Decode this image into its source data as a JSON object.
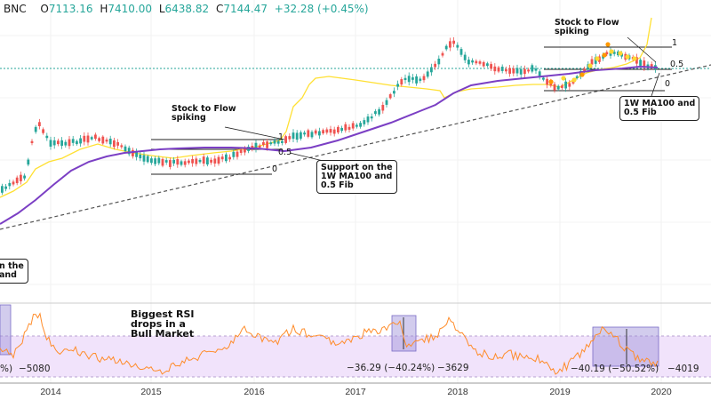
{
  "header": {
    "symbol": "BNC",
    "open_label": "O",
    "open": "7113.16",
    "high_label": "H",
    "high": "7410.00",
    "low_label": "L",
    "low": "6438.82",
    "close_label": "C",
    "close": "7144.47",
    "change": "+32.28 (+0.45%)"
  },
  "annotations": {
    "stf_2016": "Stock to Flow\nspiking",
    "stf_2019": "Stock to Flow\nspiking",
    "support_2016": "Support on the\n1W MA100 and\n0.5 Fib",
    "ma100_2019": "1W MA100 and\n0.5 Fib",
    "left_cut": "n the\nand",
    "rsi_title": "Biggest RSI\ndrops in a\nBull Market",
    "fib_labels": [
      "1",
      "0.5",
      "0"
    ]
  },
  "rsi_labels": {
    "left_pct": "%)",
    "left_val": "−5080",
    "mid_drop": "−36.29 (−40.24%)",
    "mid_val": "−3629",
    "right_drop": "−40.19 (−50.52%)",
    "right_val": "−4019"
  },
  "colors": {
    "up": "#26a69a",
    "down": "#ef5350",
    "ma100": "#7b3fc4",
    "stf": "#ffe033",
    "rsi": "#ff8c2a",
    "rsi_band": "#f1e3fb",
    "measure": "#9c8fd8"
  },
  "chart_data": {
    "type": "line",
    "x_ticks": [
      "2014",
      "2015",
      "2016",
      "2017",
      "2018",
      "2019",
      "2020"
    ],
    "fib_2016": {
      "levels": [
        "1",
        "0.5",
        "0"
      ]
    },
    "fib_2019": {
      "levels": [
        "1",
        "0.5",
        "0"
      ]
    },
    "rsi_measures": [
      {
        "label": "−36.29 (−40.24%)",
        "value": "−3629"
      },
      {
        "label": "−40.19 (−50.52%)",
        "value": "−4019"
      }
    ]
  }
}
